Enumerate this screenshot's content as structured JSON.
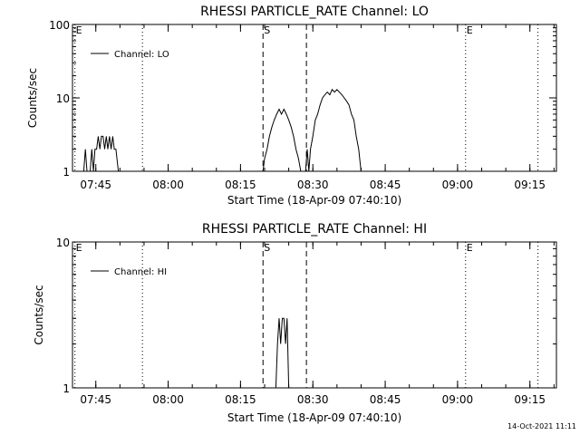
{
  "chart_data": [
    {
      "type": "line",
      "title": "RHESSI PARTICLE_RATE Channel: LO",
      "xlabel": "Start Time (18-Apr-09 07:40:10)",
      "ylabel": "Counts/sec",
      "yscale": "log",
      "ylim": [
        1,
        100
      ],
      "xlim": [
        "07:40:10",
        "09:20:30"
      ],
      "ytick_labels": [
        "1",
        "10",
        "100"
      ],
      "xtick_labels": [
        "07:45",
        "08:00",
        "08:15",
        "08:30",
        "08:45",
        "09:00",
        "09:15"
      ],
      "legend": {
        "label": "Channel: LO",
        "placement": "top-left"
      },
      "grid": false,
      "markers": [
        {
          "label": "E",
          "time": "07:40:40",
          "style": "dotted"
        },
        {
          "label": "",
          "time": "07:54:40",
          "style": "dotted"
        },
        {
          "label": "S",
          "time": "08:19:40",
          "style": "dashed"
        },
        {
          "label": "",
          "time": "08:28:40",
          "style": "dashed"
        },
        {
          "label": "E",
          "time": "09:01:40",
          "style": "dotted"
        },
        {
          "label": "",
          "time": "09:16:40",
          "style": "dotted"
        }
      ],
      "series": [
        {
          "x": [
            "07:42:30",
            "07:42:50",
            "07:43:10",
            "07:43:30",
            "07:43:50",
            "07:44:10",
            "07:44:30",
            "07:44:50",
            "07:45:10",
            "07:45:30",
            "07:45:50",
            "07:46:10",
            "07:46:30",
            "07:46:50",
            "07:47:10",
            "07:47:30",
            "07:47:50",
            "07:48:10",
            "07:48:30",
            "07:48:50",
            "07:49:10",
            "07:49:40",
            "08:19:30",
            "08:19:40",
            "08:20:00",
            "08:20:30",
            "08:21:00",
            "08:21:30",
            "08:22:00",
            "08:22:30",
            "08:23:00",
            "08:23:30",
            "08:24:00",
            "08:24:30",
            "08:25:00",
            "08:25:30",
            "08:26:00",
            "08:26:30",
            "08:27:00",
            "08:27:30",
            "08:28:00",
            "08:28:20",
            "08:28:30",
            "08:28:50",
            "08:29:10",
            "08:29:30",
            "08:30:00",
            "08:30:30",
            "08:31:00",
            "08:31:30",
            "08:32:00",
            "08:32:30",
            "08:33:00",
            "08:33:30",
            "08:34:00",
            "08:34:30",
            "08:35:00",
            "08:35:30",
            "08:36:00",
            "08:36:30",
            "08:37:00",
            "08:37:30",
            "08:38:00",
            "08:38:30",
            "08:39:00",
            "08:39:30",
            "08:40:00",
            "08:40:20"
          ],
          "y": [
            1.0,
            2.0,
            1.0,
            1.0,
            1.0,
            2.0,
            1.0,
            2.0,
            2.0,
            3.0,
            2.0,
            3.0,
            3.0,
            2.0,
            3.0,
            2.0,
            3.0,
            2.0,
            3.0,
            2.0,
            2.0,
            1.0,
            1.0,
            1.0,
            1.5,
            2.0,
            3.0,
            4.0,
            5.0,
            6.0,
            7.0,
            6.0,
            7.0,
            6.0,
            5.0,
            4.0,
            3.0,
            2.0,
            1.5,
            1.0,
            1.0,
            1.0,
            1.0,
            2.0,
            1.0,
            2.0,
            3.0,
            5.0,
            6.0,
            8.0,
            10.0,
            11.0,
            12.0,
            11.0,
            13.0,
            12.0,
            13.0,
            12.0,
            11.0,
            10.0,
            9.0,
            8.0,
            6.0,
            5.0,
            3.0,
            2.0,
            1.0,
            1.0
          ]
        }
      ]
    },
    {
      "type": "line",
      "title": "RHESSI PARTICLE_RATE Channel: HI",
      "xlabel": "Start Time (18-Apr-09 07:40:10)",
      "ylabel": "Counts/sec",
      "yscale": "log",
      "ylim": [
        1,
        10
      ],
      "xlim": [
        "07:40:10",
        "09:20:30"
      ],
      "ytick_labels": [
        "1",
        "10"
      ],
      "xtick_labels": [
        "07:45",
        "08:00",
        "08:15",
        "08:30",
        "08:45",
        "09:00",
        "09:15"
      ],
      "legend": {
        "label": "Channel: HI",
        "placement": "top-left"
      },
      "grid": false,
      "markers": [
        {
          "label": "E",
          "time": "07:40:40",
          "style": "dotted"
        },
        {
          "label": "",
          "time": "07:54:40",
          "style": "dotted"
        },
        {
          "label": "S",
          "time": "08:19:40",
          "style": "dashed"
        },
        {
          "label": "",
          "time": "08:28:40",
          "style": "dashed"
        },
        {
          "label": "E",
          "time": "09:01:40",
          "style": "dotted"
        },
        {
          "label": "",
          "time": "09:16:40",
          "style": "dotted"
        }
      ],
      "series": [
        {
          "x": [
            "08:21:50",
            "08:22:20",
            "08:22:40",
            "08:23:00",
            "08:23:20",
            "08:23:40",
            "08:24:00",
            "08:24:20",
            "08:24:40",
            "08:25:00",
            "08:25:20"
          ],
          "y": [
            1.0,
            1.0,
            2.0,
            3.0,
            2.0,
            3.0,
            3.0,
            2.0,
            3.0,
            1.0,
            1.0
          ]
        }
      ]
    }
  ],
  "footer": {
    "timestamp": "14-Oct-2021 11:11"
  }
}
